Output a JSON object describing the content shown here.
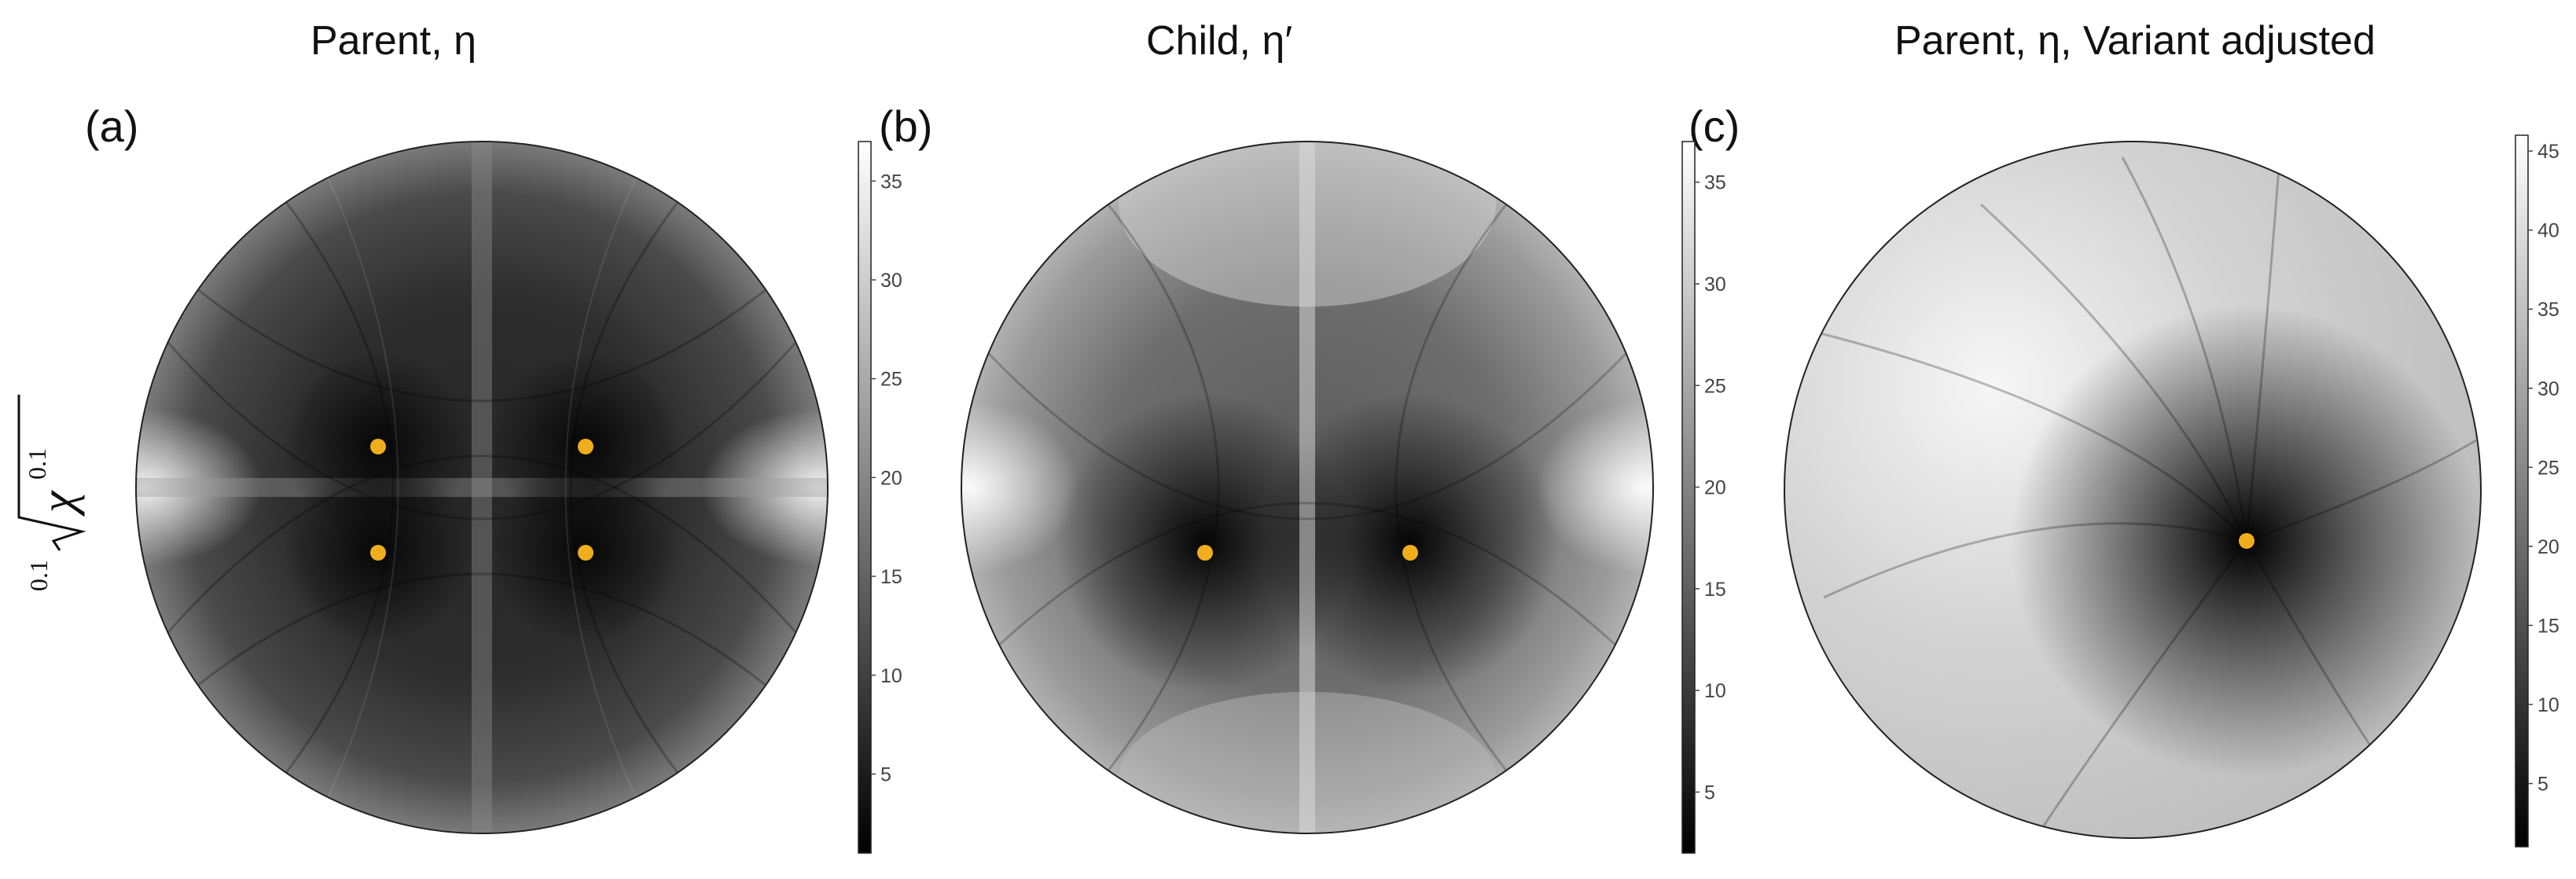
{
  "panels": [
    {
      "label": "(a)",
      "title": "Parent, η",
      "colorbar": {
        "ticks": [
          5,
          10,
          15,
          20,
          25,
          30,
          35
        ],
        "min": 1,
        "max": 37
      },
      "markers": 4
    },
    {
      "label": "(b)",
      "title": "Child, η′",
      "colorbar": {
        "ticks": [
          5,
          10,
          15,
          20,
          25,
          30,
          35
        ],
        "min": 2,
        "max": 37
      },
      "markers": 2
    },
    {
      "label": "(c)",
      "title": "Parent, η, Variant adjusted",
      "colorbar": {
        "ticks": [
          5,
          10,
          15,
          20,
          25,
          30,
          35,
          40,
          45
        ],
        "min": 1,
        "max": 46
      },
      "markers": 1
    }
  ],
  "y_axis_label": {
    "index": "0.1",
    "symbol": "χ",
    "exponent": "0.1"
  },
  "colors": {
    "marker": "#f0ad1c",
    "circle_edge": "#222222",
    "low": "#000000",
    "high": "#ffffff"
  }
}
